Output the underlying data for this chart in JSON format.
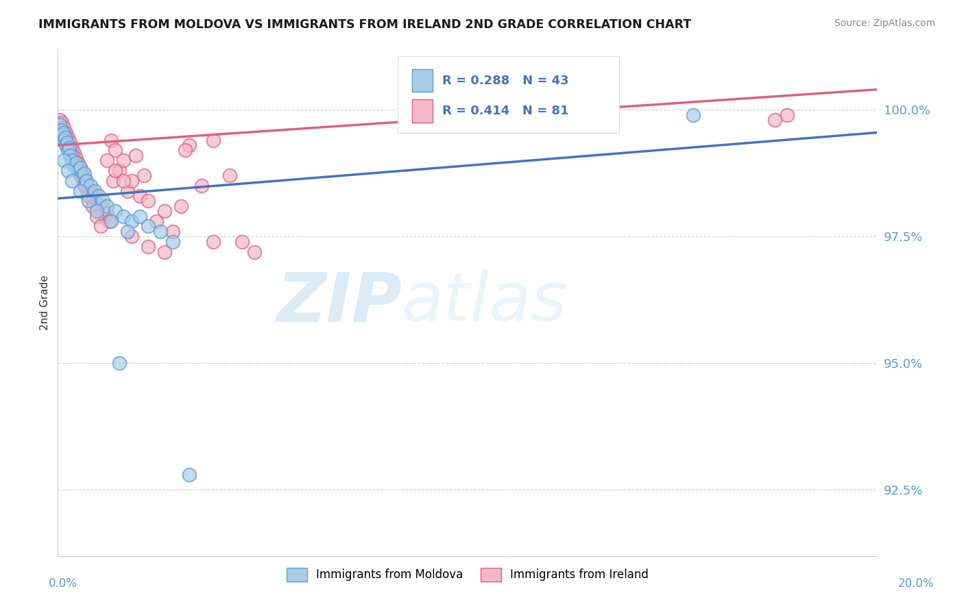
{
  "title": "IMMIGRANTS FROM MOLDOVA VS IMMIGRANTS FROM IRELAND 2ND GRADE CORRELATION CHART",
  "source": "Source: ZipAtlas.com",
  "ylabel": "2nd Grade",
  "yticks": [
    92.5,
    95.0,
    97.5,
    100.0
  ],
  "ytick_labels": [
    "92.5%",
    "95.0%",
    "97.5%",
    "100.0%"
  ],
  "xlim": [
    0.0,
    20.0
  ],
  "ylim": [
    91.2,
    101.2
  ],
  "legend1_label": "Immigrants from Moldova",
  "legend2_label": "Immigrants from Ireland",
  "r1": 0.288,
  "n1": 43,
  "r2": 0.414,
  "n2": 81,
  "color_moldova_fill": "#a8cce8",
  "color_moldova_edge": "#5B9BD5",
  "color_ireland_fill": "#f5b8c8",
  "color_ireland_edge": "#e06080",
  "color_moldova_line": "#4472C4",
  "color_ireland_line": "#E06080",
  "mol_line_x0": 0.0,
  "mol_line_y0": 98.25,
  "mol_line_x1": 20.0,
  "mol_line_y1": 99.55,
  "ire_line_x0": 0.0,
  "ire_line_y0": 99.3,
  "ire_line_x1": 20.0,
  "ire_line_y1": 100.4,
  "moldova_x": [
    0.05,
    0.08,
    0.1,
    0.12,
    0.15,
    0.18,
    0.2,
    0.22,
    0.25,
    0.28,
    0.3,
    0.35,
    0.4,
    0.45,
    0.5,
    0.55,
    0.6,
    0.65,
    0.7,
    0.8,
    0.9,
    1.0,
    1.1,
    1.2,
    1.4,
    1.6,
    1.8,
    2.0,
    2.2,
    2.5,
    0.15,
    0.25,
    0.35,
    0.55,
    0.75,
    0.95,
    1.3,
    1.7,
    2.8,
    13.5,
    15.5,
    1.5,
    3.2
  ],
  "moldova_y": [
    99.7,
    99.6,
    99.5,
    99.55,
    99.4,
    99.45,
    99.3,
    99.35,
    99.2,
    99.25,
    99.1,
    99.0,
    98.9,
    98.95,
    98.8,
    98.85,
    98.7,
    98.75,
    98.6,
    98.5,
    98.4,
    98.3,
    98.2,
    98.1,
    98.0,
    97.9,
    97.8,
    97.9,
    97.7,
    97.6,
    99.0,
    98.8,
    98.6,
    98.4,
    98.2,
    98.0,
    97.8,
    97.6,
    97.4,
    99.8,
    99.9,
    95.0,
    92.8
  ],
  "ireland_x": [
    0.05,
    0.08,
    0.1,
    0.12,
    0.15,
    0.18,
    0.2,
    0.22,
    0.25,
    0.28,
    0.3,
    0.32,
    0.35,
    0.38,
    0.4,
    0.42,
    0.45,
    0.48,
    0.5,
    0.52,
    0.55,
    0.58,
    0.6,
    0.62,
    0.65,
    0.68,
    0.7,
    0.72,
    0.75,
    0.78,
    0.8,
    0.85,
    0.9,
    0.95,
    1.0,
    1.05,
    1.1,
    1.15,
    1.2,
    1.25,
    1.3,
    1.35,
    1.4,
    1.5,
    1.6,
    1.7,
    1.8,
    1.9,
    2.0,
    2.1,
    2.2,
    2.4,
    2.6,
    2.8,
    3.0,
    3.2,
    3.5,
    3.8,
    4.2,
    4.5,
    0.15,
    0.25,
    0.35,
    0.45,
    0.55,
    0.65,
    0.75,
    0.85,
    0.95,
    1.05,
    1.2,
    1.4,
    1.6,
    1.8,
    2.2,
    2.6,
    3.1,
    3.8,
    4.8,
    17.5,
    17.8
  ],
  "ireland_y": [
    99.8,
    99.7,
    99.75,
    99.6,
    99.65,
    99.5,
    99.55,
    99.4,
    99.45,
    99.3,
    99.35,
    99.2,
    99.25,
    99.1,
    99.15,
    99.0,
    99.05,
    98.9,
    98.95,
    98.8,
    98.85,
    98.7,
    98.75,
    98.6,
    98.65,
    98.5,
    98.55,
    98.4,
    98.45,
    98.3,
    98.35,
    98.2,
    98.25,
    98.1,
    98.15,
    98.0,
    98.05,
    97.9,
    97.95,
    97.8,
    99.4,
    98.6,
    99.2,
    98.8,
    99.0,
    98.4,
    98.6,
    99.1,
    98.3,
    98.7,
    98.2,
    97.8,
    98.0,
    97.6,
    98.1,
    99.3,
    98.5,
    99.4,
    98.7,
    97.4,
    99.5,
    99.3,
    99.1,
    98.9,
    98.7,
    98.5,
    98.3,
    98.1,
    97.9,
    97.7,
    99.0,
    98.8,
    98.6,
    97.5,
    97.3,
    97.2,
    99.2,
    97.4,
    97.2,
    99.8,
    99.9
  ]
}
